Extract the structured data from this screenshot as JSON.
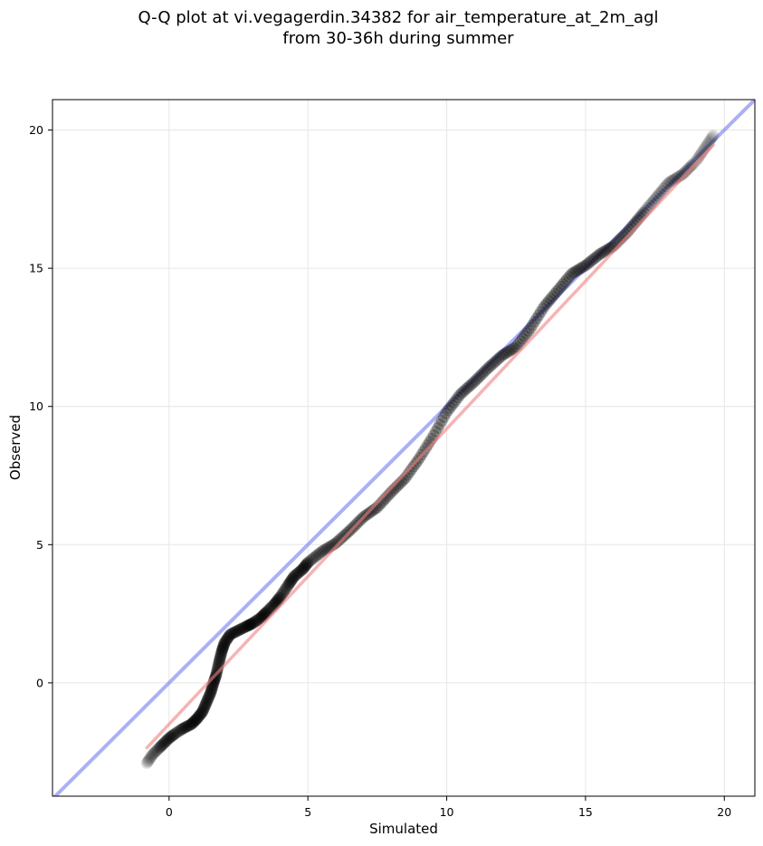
{
  "chart_data": {
    "type": "scatter",
    "title": [
      "Q-Q plot at vi.vegagerdin.34382 for air_temperature_at_2m_agl",
      "from 30-36h during summer"
    ],
    "xlabel": "Simulated",
    "ylabel": "Observed",
    "xlim": [
      -4.2,
      21.1
    ],
    "ylim": [
      -4.1,
      21.1
    ],
    "xticks": [
      0,
      5,
      10,
      15,
      20
    ],
    "yticks": [
      0,
      5,
      10,
      15,
      20
    ],
    "grid": true,
    "colors": {
      "points": "#000000",
      "fit_line": "#f08080",
      "identity_line": "#6670ee",
      "grid": "#e6e6e6",
      "frame": "#000000"
    },
    "reference_lines": [
      {
        "kind": "identity",
        "x": [
          -4.2,
          21.1
        ],
        "y": [
          -4.2,
          21.1
        ]
      },
      {
        "kind": "fit",
        "x": [
          -0.8,
          19.6
        ],
        "y": [
          -2.35,
          19.45
        ]
      }
    ],
    "quantile_anchors": {
      "x": [
        -0.8,
        -0.6,
        -0.4,
        -0.2,
        0.0,
        0.2,
        0.5,
        0.8,
        1.0,
        1.2,
        1.35,
        1.5,
        1.6,
        1.7,
        1.8,
        1.9,
        2.0,
        2.2,
        2.5,
        2.8,
        3.0,
        3.3,
        3.5,
        3.8,
        4.0,
        4.3,
        4.5,
        4.8,
        5.0,
        5.5,
        6.0,
        6.5,
        7.0,
        7.5,
        8.0,
        8.5,
        9.0,
        9.5,
        10.0,
        10.5,
        11.0,
        11.5,
        12.0,
        12.5,
        13.0,
        13.5,
        14.0,
        14.5,
        15.0,
        15.5,
        16.0,
        16.5,
        17.0,
        17.5,
        18.0,
        18.5,
        19.0,
        19.3,
        19.6
      ],
      "y": [
        -2.9,
        -2.6,
        -2.4,
        -2.2,
        -2.0,
        -1.85,
        -1.65,
        -1.5,
        -1.3,
        -1.05,
        -0.7,
        -0.35,
        0.0,
        0.3,
        0.75,
        1.15,
        1.45,
        1.75,
        1.9,
        2.05,
        2.15,
        2.35,
        2.55,
        2.85,
        3.1,
        3.55,
        3.85,
        4.1,
        4.35,
        4.75,
        5.05,
        5.5,
        6.0,
        6.35,
        6.9,
        7.4,
        8.1,
        8.9,
        9.8,
        10.45,
        10.9,
        11.4,
        11.85,
        12.15,
        12.8,
        13.6,
        14.2,
        14.8,
        15.1,
        15.5,
        15.8,
        16.3,
        16.9,
        17.5,
        18.1,
        18.4,
        18.9,
        19.35,
        19.8
      ]
    },
    "point_count": 400
  }
}
